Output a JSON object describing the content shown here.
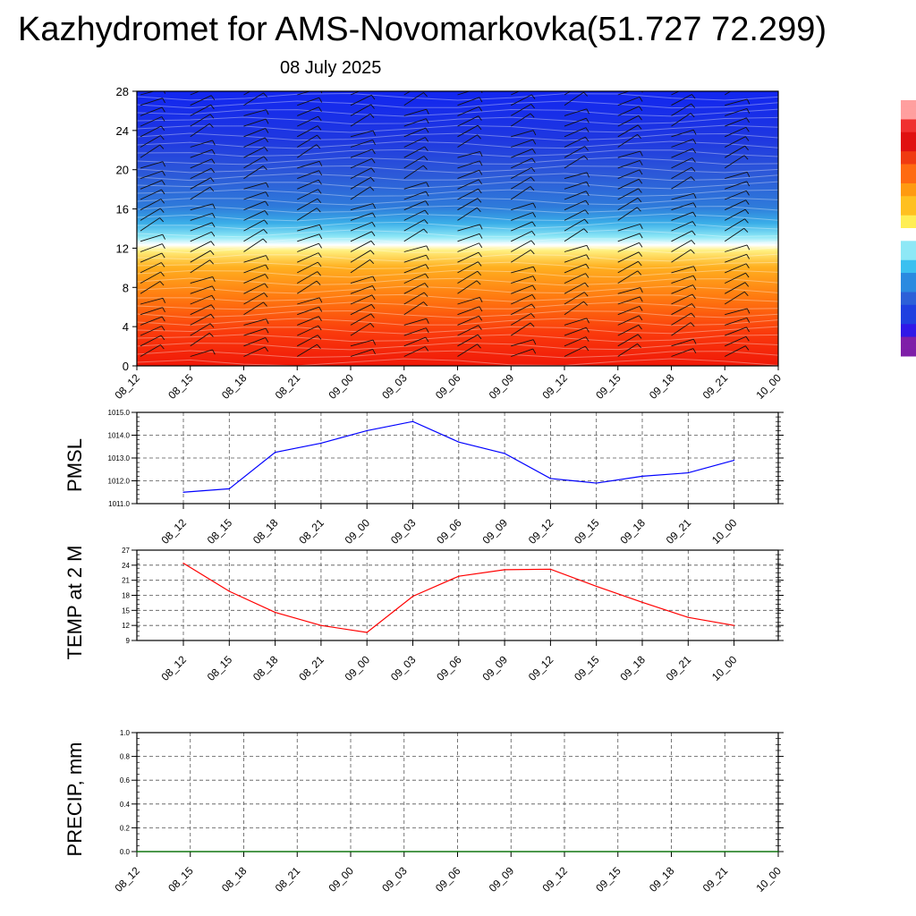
{
  "title": "Kazhydromet for AMS-Novomarkovka(51.727 72.299)",
  "subtitle": "08 July 2025",
  "chart_data": [
    {
      "id": "vertical_profile",
      "type": "heatmap",
      "x_tick_labels": [
        "08_12",
        "08_15",
        "08_18",
        "08_21",
        "09_00",
        "09_03",
        "09_06",
        "09_09",
        "09_12",
        "09_15",
        "09_18",
        "09_21",
        "10_00"
      ],
      "yticks": [
        "0",
        "4",
        "8",
        "12",
        "16",
        "20",
        "24",
        "28"
      ],
      "ylim": [
        0,
        28
      ],
      "colorbar": [
        "#7f1fa8",
        "#4a1fd6",
        "#1f3ee0",
        "#2a5cd8",
        "#3c7ad8",
        "#3aa2e8",
        "#5fd0f0",
        "#ffffff",
        "#ffee55",
        "#ffc020",
        "#ff9010",
        "#ff5a10",
        "#f02010",
        "#d01010",
        "#ffffff"
      ],
      "wind_barbs": true
    },
    {
      "id": "pmsl",
      "type": "line",
      "ylabel": "PMSL",
      "x": [
        "08_12",
        "08_15",
        "08_18",
        "08_21",
        "09_00",
        "09_03",
        "09_06",
        "09_09",
        "09_12",
        "09_15",
        "09_18",
        "09_21",
        "10_00"
      ],
      "values": [
        1011.5,
        1011.65,
        1013.25,
        1013.65,
        1014.2,
        1014.6,
        1013.7,
        1013.2,
        1012.1,
        1011.9,
        1012.2,
        1012.35,
        1012.9
      ],
      "yticks": [
        "1011.0",
        "1012.0",
        "1013.0",
        "1014.0",
        "1015.0"
      ],
      "ylim": [
        1011.0,
        1015.0
      ],
      "color": "#0000ff",
      "grid": true
    },
    {
      "id": "temp2m",
      "type": "line",
      "ylabel": "TEMP at 2 M",
      "x": [
        "08_12",
        "08_15",
        "08_18",
        "08_21",
        "09_00",
        "09_03",
        "09_06",
        "09_09",
        "09_12",
        "09_15",
        "09_18",
        "09_21",
        "10_00"
      ],
      "values": [
        24.4,
        18.8,
        14.6,
        12.0,
        10.6,
        17.8,
        21.8,
        23.1,
        23.2,
        19.8,
        16.6,
        13.6,
        12.0
      ],
      "yticks": [
        "9",
        "12",
        "15",
        "18",
        "21",
        "24",
        "27"
      ],
      "ylim": [
        9,
        27
      ],
      "color": "#ff0000",
      "grid": true
    },
    {
      "id": "precip",
      "type": "line",
      "ylabel": "PRECIP, mm",
      "x": [
        "08_12",
        "08_15",
        "08_18",
        "08_21",
        "09_00",
        "09_03",
        "09_06",
        "09_09",
        "09_12",
        "09_15",
        "09_18",
        "09_21",
        "10_00"
      ],
      "values": [
        0,
        0,
        0,
        0,
        0,
        0,
        0,
        0,
        0,
        0,
        0,
        0,
        0
      ],
      "yticks": [
        "0.0",
        "0.2",
        "0.4",
        "0.6",
        "0.8",
        "1.0"
      ],
      "ylim": [
        0.0,
        1.0
      ],
      "color": "#007a00",
      "grid": true
    }
  ]
}
